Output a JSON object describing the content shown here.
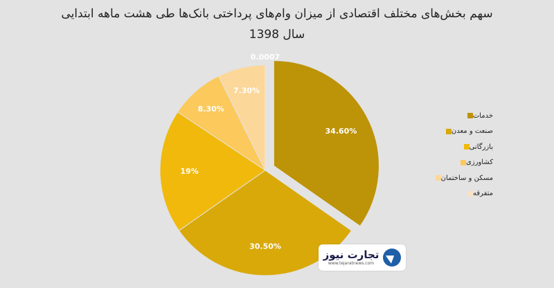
{
  "title_line1": "سهم بخش‌های مختلف اقتصادی از میزان وام‌های پرداختی بانک‌ها طی هشت ماهه ابتدایی",
  "title_line2": "سال 1398",
  "logo": {
    "name": "تجارت نیوز",
    "url": "www.tejaratnews.com"
  },
  "chart_data": {
    "type": "pie",
    "title": "سهم بخش‌های مختلف اقتصادی از میزان وام‌های پرداختی بانک‌ها طی هشت ماهه ابتدایی سال 1398",
    "legend_position": "right",
    "exploded": "خدمات",
    "slices": [
      {
        "name": "خدمات",
        "value": 34.6,
        "label": "34.60%",
        "color": "#bd9307"
      },
      {
        "name": "صنعت و معدن",
        "value": 30.5,
        "label": "30.50%",
        "color": "#d9a90a"
      },
      {
        "name": "بازرگانی",
        "value": 19,
        "label": "19%",
        "color": "#f0b90b"
      },
      {
        "name": "کشاورزی",
        "value": 8.3,
        "label": "8.30%",
        "color": "#fbc95c"
      },
      {
        "name": "مسکن و ساختمان",
        "value": 7.3,
        "label": "7.30%",
        "color": "#fcd79a"
      },
      {
        "name": "متفرقه",
        "value": 0.0007,
        "label": "0.0007",
        "color": "#f9e1c3"
      }
    ]
  }
}
